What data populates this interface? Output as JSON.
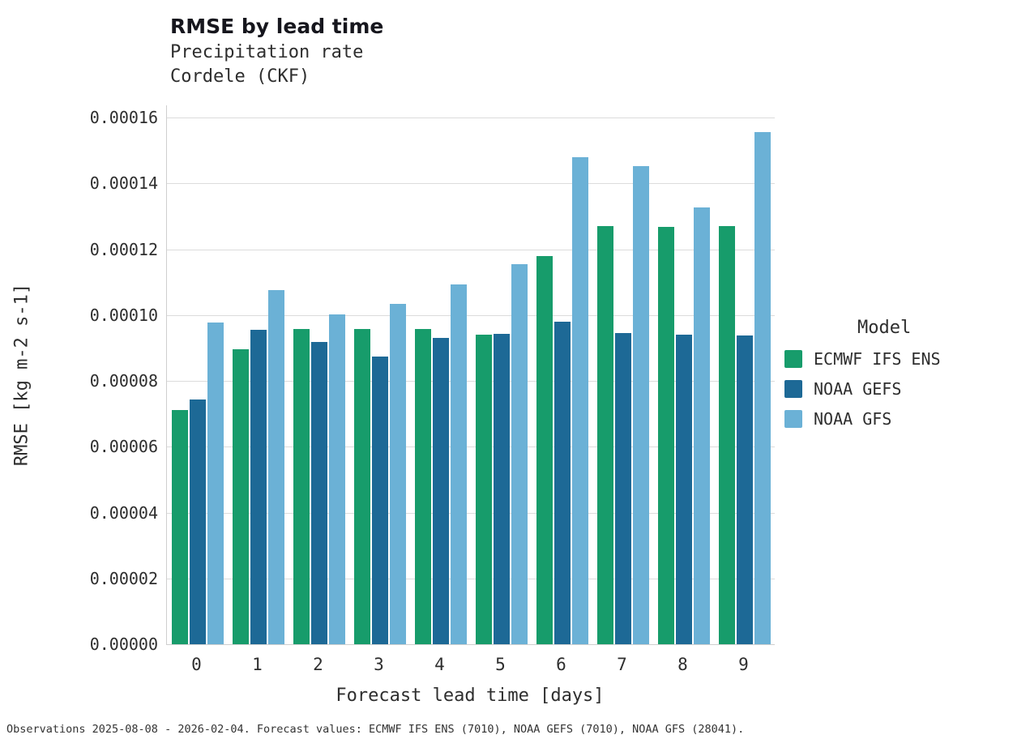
{
  "chart_data": {
    "type": "bar",
    "title": "RMSE by lead time",
    "subtitle1": "Precipitation rate",
    "subtitle2": "Cordele (CKF)",
    "xlabel": "Forecast lead time [days]",
    "ylabel": "RMSE [kg m-2 s-1]",
    "ylim": [
      0,
      0.00016
    ],
    "ytick_step": 2e-05,
    "ytick_decimals": 5,
    "grid": "horizontal",
    "legend_position": "right",
    "categories": [
      "0",
      "1",
      "2",
      "3",
      "4",
      "5",
      "6",
      "7",
      "8",
      "9"
    ],
    "series": [
      {
        "name": "ECMWF IFS ENS",
        "color": "#179c6b",
        "values": [
          7.12e-05,
          8.97e-05,
          9.58e-05,
          9.58e-05,
          9.58e-05,
          9.4e-05,
          0.0001178,
          0.0001271,
          0.0001268,
          0.0001271
        ]
      },
      {
        "name": "NOAA GEFS",
        "color": "#1d6996",
        "values": [
          7.43e-05,
          9.55e-05,
          9.18e-05,
          8.74e-05,
          9.31e-05,
          9.43e-05,
          9.79e-05,
          9.46e-05,
          9.4e-05,
          9.38e-05
        ]
      },
      {
        "name": "NOAA GFS",
        "color": "#6bb1d6",
        "values": [
          9.78e-05,
          0.0001076,
          0.0001003,
          0.0001035,
          0.0001093,
          0.0001155,
          0.000148,
          0.0001452,
          0.0001328,
          0.0001556
        ]
      }
    ],
    "legend_title": "Model",
    "footer": "Observations 2025-08-08 - 2026-02-04. Forecast values: ECMWF IFS ENS (7010), NOAA GEFS (7010), NOAA GFS (28041)."
  }
}
